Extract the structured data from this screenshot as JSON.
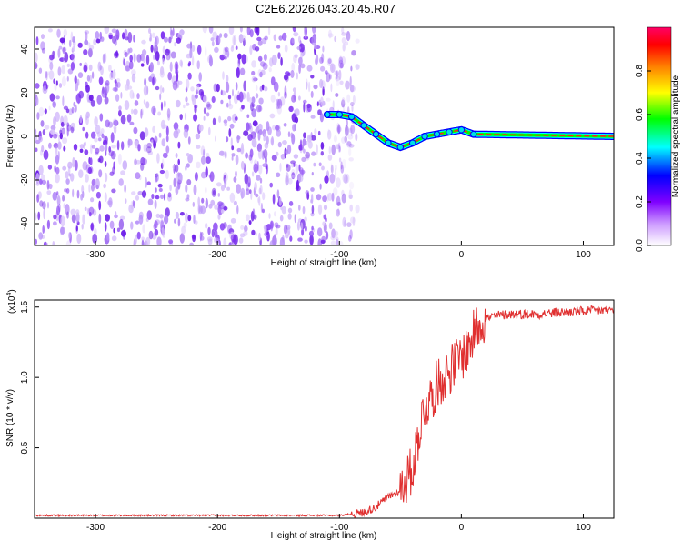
{
  "title": "C2E6.2026.043.20.45.R07",
  "chart_data": [
    {
      "type": "heatmap",
      "xlabel": "Height of straight line (km)",
      "ylabel": "Frequency (Hz)",
      "xlim": [
        -350,
        125
      ],
      "ylim": [
        -50,
        50
      ],
      "x_ticks": [
        -300,
        -200,
        -100,
        0,
        100
      ],
      "y_ticks": [
        -40,
        -20,
        0,
        20,
        40
      ],
      "noise_region_x": [
        -350,
        -85
      ],
      "ridge": {
        "name": "",
        "x": [
          -110,
          -100,
          -90,
          -80,
          -70,
          -60,
          -50,
          -40,
          -30,
          -20,
          -10,
          0,
          10,
          125
        ],
        "y": [
          10,
          10,
          9,
          5,
          1,
          -3,
          -5,
          -3,
          0,
          1,
          2,
          3,
          1,
          0
        ]
      },
      "colorbar": {
        "label": "Normalized spectral amplitude",
        "range": [
          0,
          1
        ],
        "ticks": [
          "0.0",
          "0.2",
          "0.4",
          "0.6",
          "0.8"
        ],
        "tick_values": [
          0,
          0.2,
          0.4,
          0.6,
          0.8
        ],
        "colors": [
          "#ffffff",
          "#9932ff",
          "#0000ff",
          "#00ffff",
          "#00ff00",
          "#ffff00",
          "#ff8000",
          "#ff0000",
          "#ff0066"
        ]
      }
    },
    {
      "type": "line",
      "xlabel": "Height of straight line (km)",
      "ylabel": "SNR (10 * v/v)",
      "multiplier": "(x10",
      "multiplier_exp": "4",
      "multiplier_close": ")",
      "xlim": [
        -350,
        125
      ],
      "ylim": [
        0,
        1.55
      ],
      "x_ticks": [
        -300,
        -200,
        -100,
        0,
        100
      ],
      "y_ticks": [
        "0.5",
        "1.0",
        "1.5"
      ],
      "y_tick_values": [
        0.5,
        1.0,
        1.5
      ],
      "color": "#e03030",
      "series": [
        {
          "name": "",
          "x": [
            -350,
            -100,
            -80,
            -70,
            -60,
            -50,
            -40,
            -35,
            -30,
            -25,
            -20,
            -15,
            -10,
            -5,
            0,
            5,
            10,
            15,
            20,
            30,
            40,
            60,
            80,
            100,
            125
          ],
          "y": [
            0.02,
            0.02,
            0.04,
            0.08,
            0.15,
            0.2,
            0.35,
            0.6,
            0.8,
            0.85,
            0.95,
            1.0,
            1.05,
            1.1,
            1.15,
            1.2,
            1.3,
            1.4,
            1.42,
            1.44,
            1.45,
            1.45,
            1.46,
            1.47,
            1.48
          ]
        }
      ]
    }
  ]
}
